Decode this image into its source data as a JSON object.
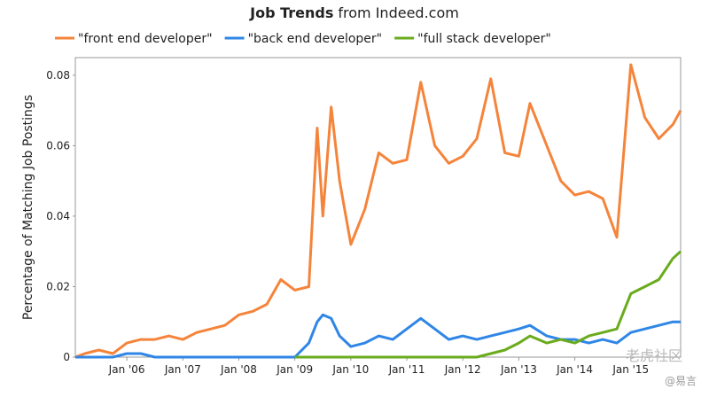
{
  "chart_data": {
    "type": "line",
    "title": {
      "bold": "Job Trends",
      "normal": "from Indeed.com"
    },
    "y_label": "Percentage of Matching Job Postings",
    "x": [
      2005.08,
      2005.25,
      2005.5,
      2005.75,
      2006,
      2006.25,
      2006.5,
      2006.75,
      2007,
      2007.25,
      2007.5,
      2007.75,
      2008,
      2008.25,
      2008.5,
      2008.75,
      2009,
      2009.25,
      2009.4,
      2009.5,
      2009.65,
      2009.8,
      2010,
      2010.25,
      2010.5,
      2010.75,
      2011,
      2011.25,
      2011.5,
      2011.75,
      2012,
      2012.25,
      2012.5,
      2012.75,
      2013,
      2013.2,
      2013.5,
      2013.75,
      2014,
      2014.25,
      2014.5,
      2014.75,
      2015,
      2015.25,
      2015.5,
      2015.75,
      2015.89
    ],
    "series": [
      {
        "name": "\"front end developer\"",
        "color": "#f5843b",
        "values": [
          0,
          0.001,
          0.002,
          0.001,
          0.004,
          0.005,
          0.005,
          0.006,
          0.005,
          0.007,
          0.008,
          0.009,
          0.012,
          0.013,
          0.015,
          0.022,
          0.019,
          0.02,
          0.065,
          0.04,
          0.071,
          0.05,
          0.032,
          0.042,
          0.058,
          0.055,
          0.056,
          0.078,
          0.06,
          0.055,
          0.057,
          0.062,
          0.079,
          0.058,
          0.057,
          0.072,
          0.06,
          0.05,
          0.046,
          0.047,
          0.045,
          0.034,
          0.083,
          0.068,
          0.062,
          0.066,
          0.07
        ]
      },
      {
        "name": "\"back end developer\"",
        "color": "#2f86e6",
        "values": [
          0,
          0,
          0,
          0,
          0.001,
          0.001,
          0,
          0,
          0,
          0,
          0,
          0,
          0,
          0,
          0,
          0,
          0,
          0.004,
          0.01,
          0.012,
          0.011,
          0.006,
          0.003,
          0.004,
          0.006,
          0.005,
          0.008,
          0.011,
          0.008,
          0.005,
          0.006,
          0.005,
          0.006,
          0.007,
          0.008,
          0.009,
          0.006,
          0.005,
          0.005,
          0.004,
          0.005,
          0.004,
          0.007,
          0.008,
          0.009,
          0.01,
          0.01
        ]
      },
      {
        "name": "\"full stack developer\"",
        "color": "#6aab1d",
        "values": [
          null,
          null,
          null,
          null,
          null,
          null,
          null,
          null,
          null,
          null,
          null,
          null,
          null,
          null,
          null,
          null,
          0,
          0,
          0,
          0,
          0,
          0,
          0,
          0,
          0,
          0,
          0,
          0,
          0,
          0,
          0,
          0,
          0.001,
          0.002,
          0.004,
          0.006,
          0.004,
          0.005,
          0.004,
          0.006,
          0.007,
          0.008,
          0.018,
          0.02,
          0.022,
          0.028,
          0.03
        ]
      }
    ],
    "xlim": [
      2005.08,
      2015.89
    ],
    "xticks": [
      {
        "value": 2006,
        "label": "Jan '06"
      },
      {
        "value": 2007,
        "label": "Jan '07"
      },
      {
        "value": 2008,
        "label": "Jan '08"
      },
      {
        "value": 2009,
        "label": "Jan '09"
      },
      {
        "value": 2010,
        "label": "Jan '10"
      },
      {
        "value": 2011,
        "label": "Jan '11"
      },
      {
        "value": 2012,
        "label": "Jan '12"
      },
      {
        "value": 2013,
        "label": "Jan '13"
      },
      {
        "value": 2014,
        "label": "Jan '14"
      },
      {
        "value": 2015,
        "label": "Jan '15"
      }
    ],
    "ylim": [
      0,
      0.085
    ],
    "yticks": [
      0,
      0.02,
      0.04,
      0.06,
      0.08
    ],
    "grid": false,
    "legend": "top",
    "watermark": [
      "老虎社区",
      "@易言"
    ]
  }
}
